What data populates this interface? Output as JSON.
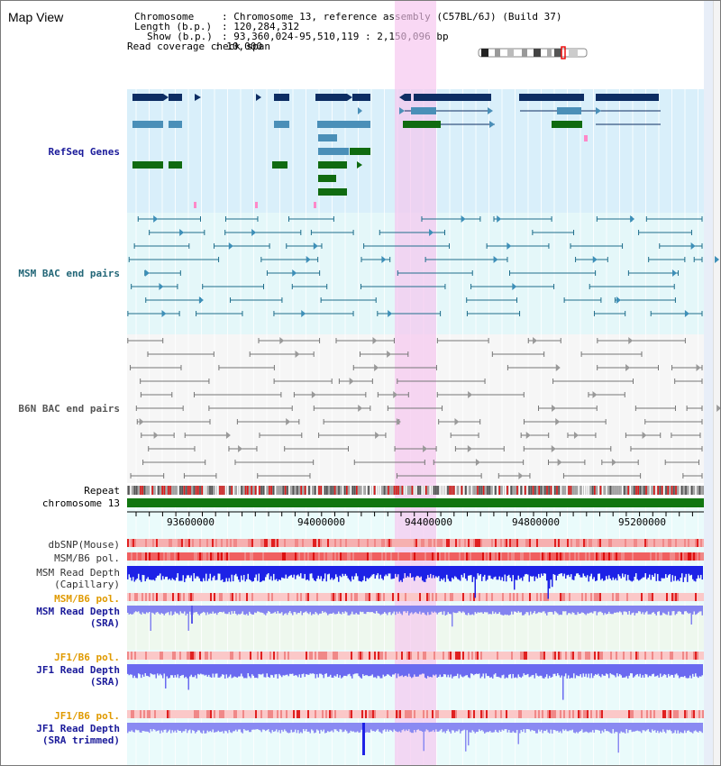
{
  "title": "Map View",
  "info": {
    "chromosome_key": "Chromosome",
    "chromosome_val": "Chromosome 13, reference assembly (C57BL/6J) (Build 37)",
    "length_key": "Length (b.p.)",
    "length_val": "120,284,312",
    "show_key": "Show (b.p.)",
    "show_val": "93,360,024-95,510,119 : 2,150,096 bp",
    "span_key": "Read coverage check span",
    "span_val": "10,000"
  },
  "tracks": {
    "refseq": "RefSeq Genes",
    "msm_bac": "MSM BAC end pairs",
    "b6n_bac": "B6N BAC end pairs",
    "repeat": "Repeat",
    "chromosome": "chromosome 13",
    "dbsnp": "dbSNP(Mouse)",
    "msm_b6_pol_1": "MSM/B6 pol.",
    "msm_depth_cap_1": "MSM Read Depth",
    "msm_depth_cap_2": "(Capillary)",
    "msm_b6_pol_2": "MSM/B6 pol.",
    "msm_depth_sra_1": "MSM Read Depth",
    "msm_depth_sra_2": "(SRA)",
    "jf1_b6_pol_1": "JF1/B6 pol.",
    "jf1_depth_sra_1": "JF1 Read Depth",
    "jf1_depth_sra_2": "(SRA)",
    "jf1_b6_pol_2": "JF1/B6 pol.",
    "jf1_depth_trim_1": "JF1 Read Depth",
    "jf1_depth_trim_2": "(SRA trimmed)"
  },
  "axis_ticks": [
    "93600000",
    "94000000",
    "94400000",
    "94800000",
    "95200000"
  ],
  "colors": {
    "refseq_bg": "#d9effa",
    "msm_bac_bg": "#e4f7f9",
    "b6n_bg": "#f7f7f7",
    "highlight": "#f6c3ee",
    "navy": "#0d2d63",
    "teal": "#4a8fb8",
    "green": "#106b10",
    "chrom_green": "#117711",
    "depth_blue": "#1d22e6",
    "sra_blue": "#7a7af0",
    "label_navy": "#1a1a9a",
    "label_teal": "#226677",
    "label_orange": "#e09a00"
  }
}
